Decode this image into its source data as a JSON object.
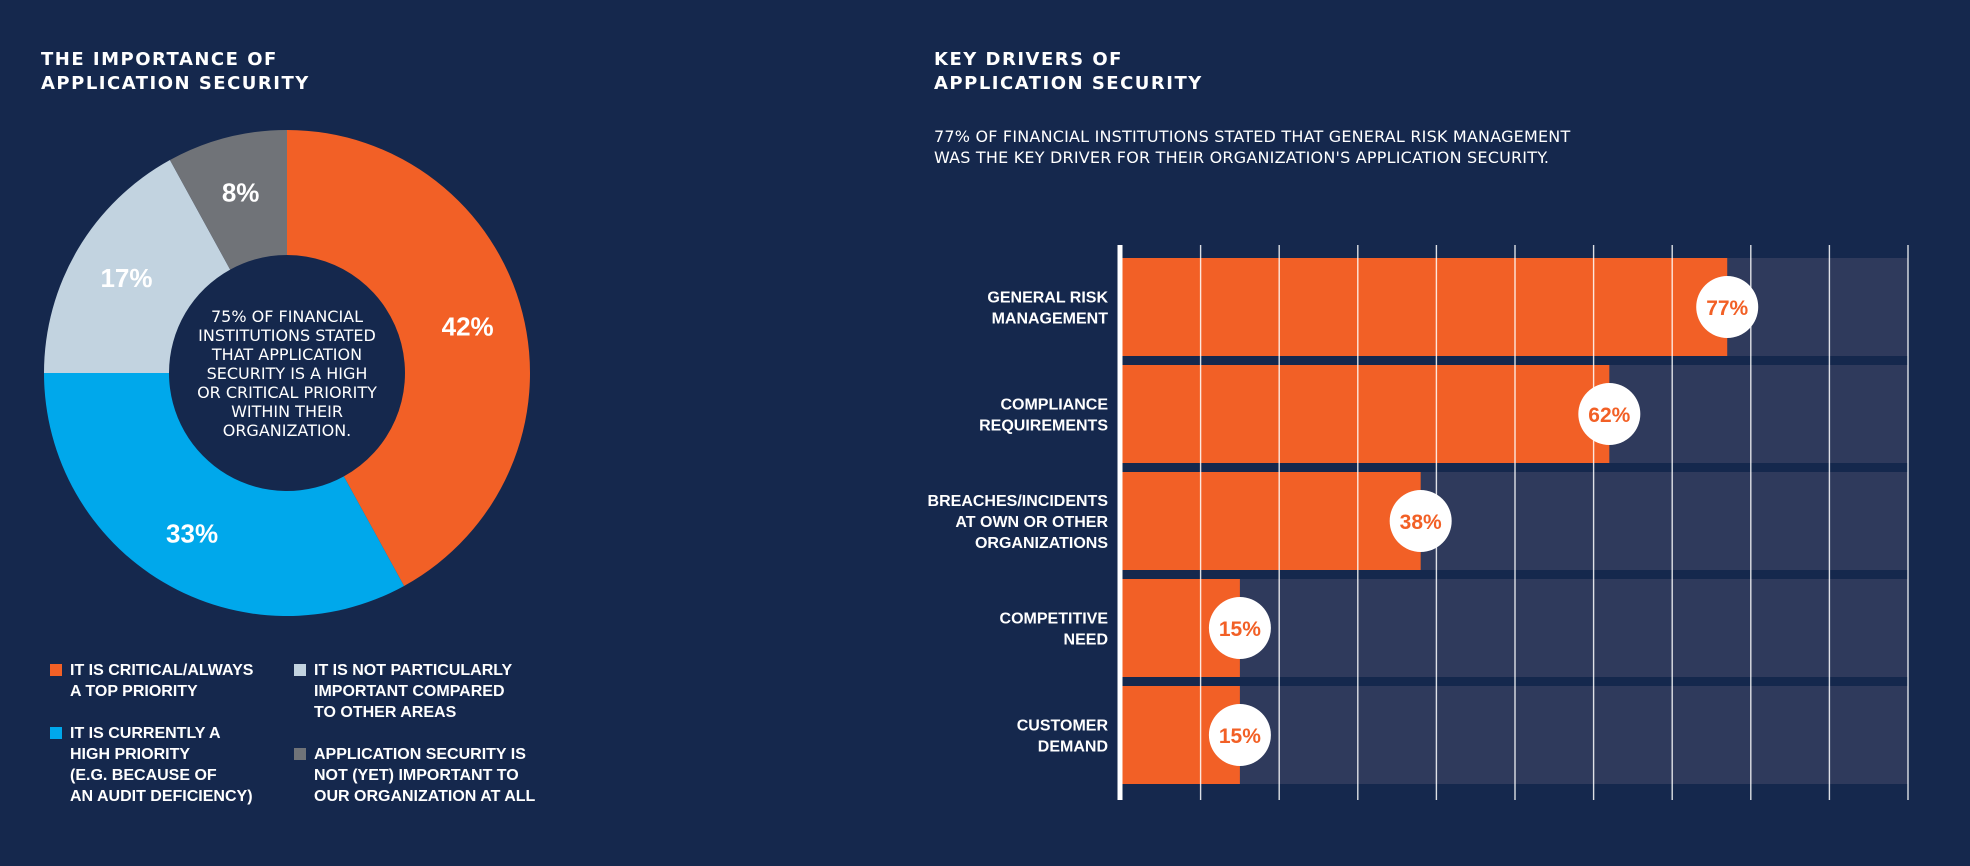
{
  "left": {
    "title_lines": [
      "THE IMPORTANCE OF",
      "APPLICATION SECURITY"
    ],
    "center_text_lines": [
      "75% OF FINANCIAL",
      "INSTITUTIONS STATED",
      "THAT APPLICATION",
      "SECURITY IS A HIGH",
      "OR CRITICAL PRIORITY",
      "WITHIN THEIR",
      "ORGANIZATION."
    ],
    "legend": [
      {
        "lines": [
          "IT IS CRITICAL/ALWAYS",
          "A TOP PRIORITY"
        ],
        "color": "#f26026"
      },
      {
        "lines": [
          "IT IS CURRENTLY A",
          "HIGH PRIORITY",
          "(E.G. BECAUSE OF",
          "AN AUDIT DEFICIENCY)"
        ],
        "color": "#00a8eb"
      },
      {
        "lines": [
          "IT IS NOT PARTICULARLY",
          "IMPORTANT COMPARED",
          "TO OTHER AREAS"
        ],
        "color": "#c2d3e0"
      },
      {
        "lines": [
          "APPLICATION SECURITY IS",
          "NOT (YET) IMPORTANT TO",
          "OUR ORGANIZATION AT ALL"
        ],
        "color": "#707378"
      }
    ]
  },
  "right": {
    "title_lines": [
      "KEY DRIVERS OF",
      "APPLICATION SECURITY"
    ],
    "subtitle_lines": [
      "77% OF FINANCIAL INSTITUTIONS STATED THAT GENERAL RISK MANAGEMENT",
      "WAS THE KEY DRIVER FOR THEIR ORGANIZATION'S APPLICATION SECURITY."
    ]
  },
  "chart_data": [
    {
      "type": "pie",
      "title": "THE IMPORTANCE OF APPLICATION SECURITY",
      "categories": [
        "IT IS CRITICAL/ALWAYS A TOP PRIORITY",
        "IT IS CURRENTLY A HIGH PRIORITY (E.G. BECAUSE OF AN AUDIT DEFICIENCY)",
        "IT IS NOT PARTICULARLY IMPORTANT COMPARED TO OTHER AREAS",
        "APPLICATION SECURITY IS NOT (YET) IMPORTANT TO OUR ORGANIZATION AT ALL"
      ],
      "values": [
        42,
        33,
        17,
        8
      ],
      "labels": [
        "42%",
        "33%",
        "17%",
        "8%"
      ],
      "colors": [
        "#f26026",
        "#00a8eb",
        "#c2d3e0",
        "#707378"
      ],
      "label_colors": [
        "#ffffff",
        "#ffffff",
        "#ffffff",
        "#ffffff"
      ],
      "donut": true,
      "legend": "bottom"
    },
    {
      "type": "bar",
      "orientation": "horizontal",
      "title": "KEY DRIVERS OF APPLICATION SECURITY",
      "categories": [
        [
          "GENERAL RISK",
          "MANAGEMENT"
        ],
        [
          "COMPLIANCE",
          "REQUIREMENTS"
        ],
        [
          "BREACHES/INCIDENTS",
          "AT OWN OR OTHER",
          "ORGANIZATIONS"
        ],
        [
          "COMPETITIVE",
          "NEED"
        ],
        [
          "CUSTOMER",
          "DEMAND"
        ]
      ],
      "values": [
        77,
        62,
        38,
        15,
        15
      ],
      "labels": [
        "77%",
        "62%",
        "38%",
        "15%",
        "15%"
      ],
      "xlim": [
        0,
        100
      ],
      "grid": true,
      "bar_color": "#f26026",
      "track_color": "#2f3a5c",
      "label_bubble_color": "#ffffff",
      "label_text_color": "#f26026"
    }
  ]
}
